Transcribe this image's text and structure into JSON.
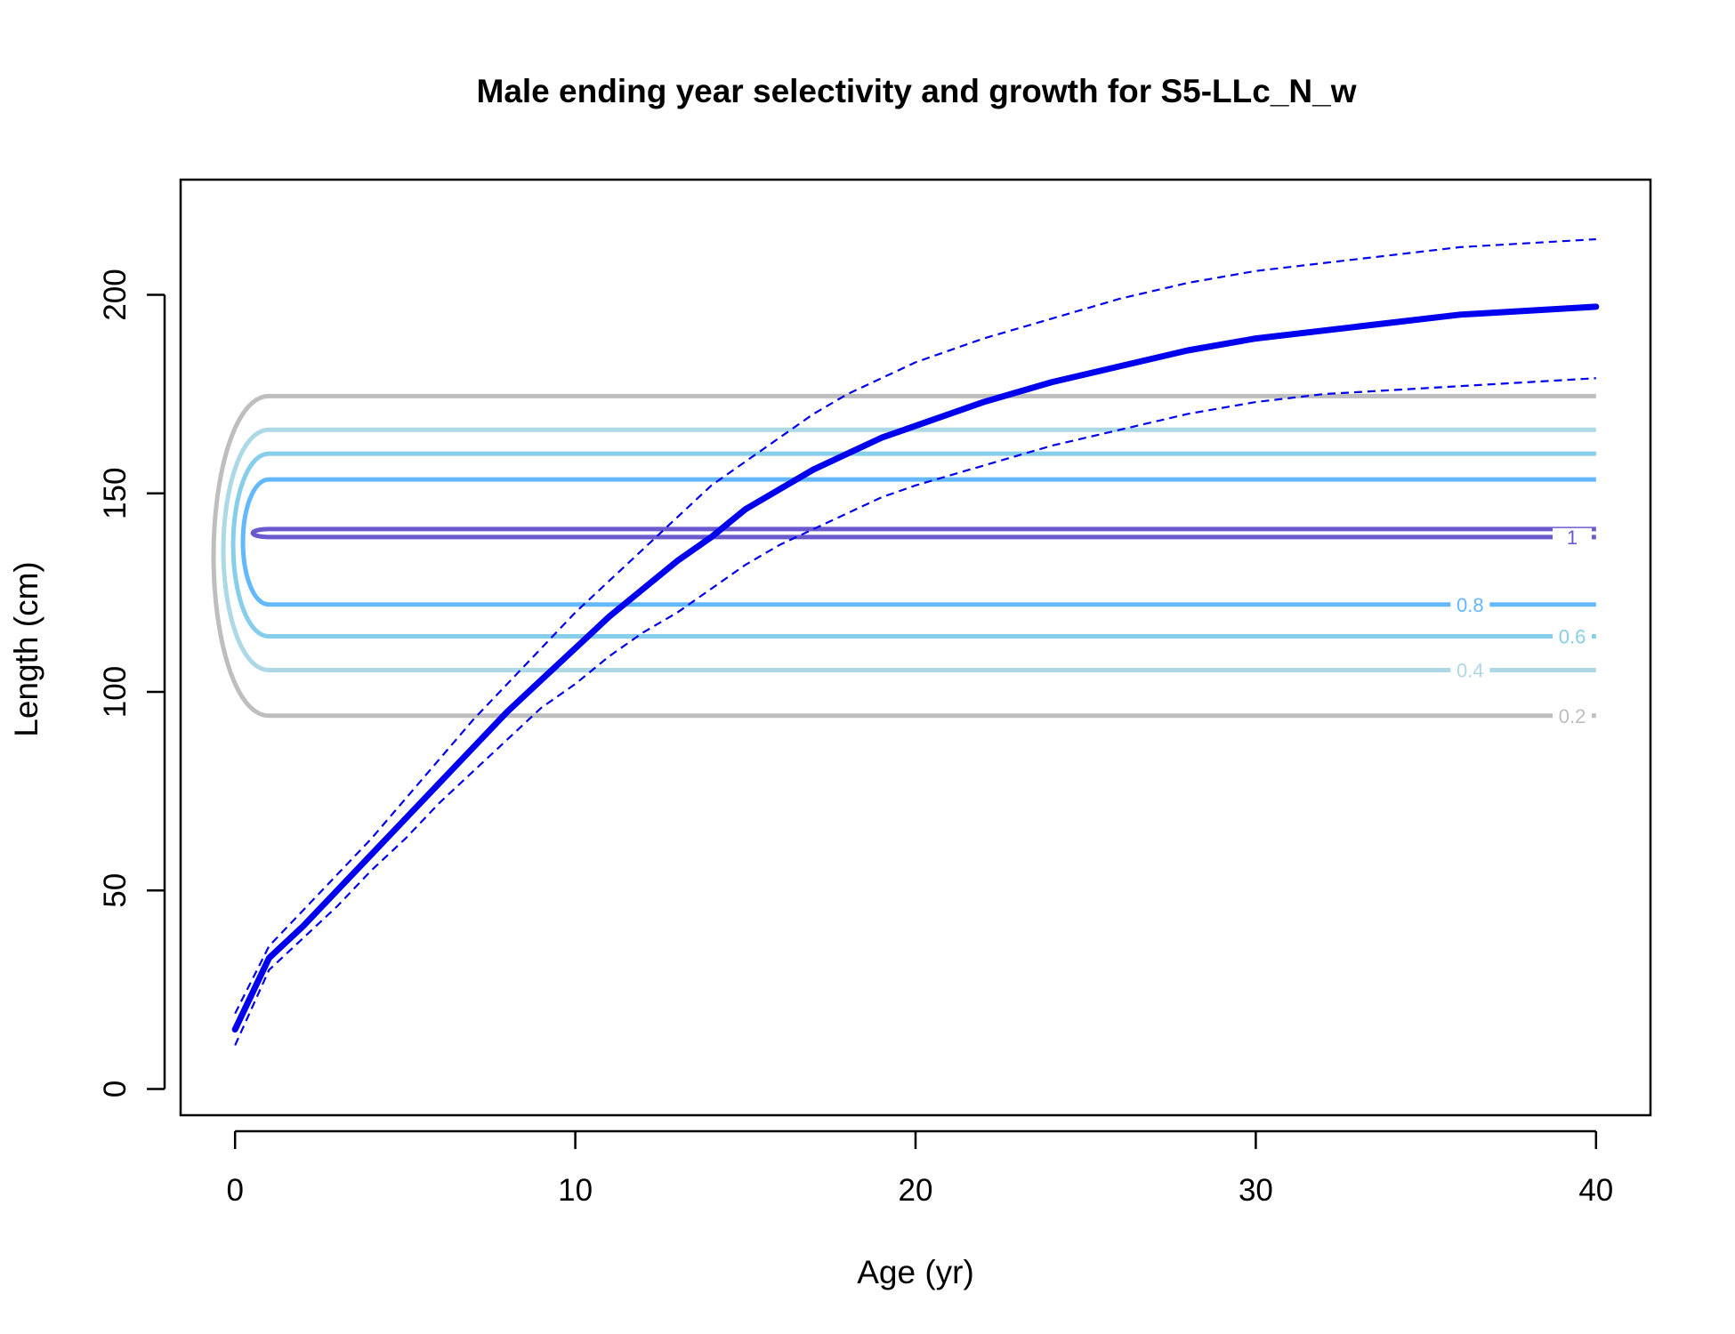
{
  "chart_data": {
    "type": "line",
    "title": "Male ending year selectivity and growth for S5-LLc_N_w",
    "xlabel": "Age (yr)",
    "ylabel": "Length (cm)",
    "xlim": [
      -1.6,
      41.6
    ],
    "ylim": [
      -6.6,
      229
    ],
    "xticks": [
      0,
      10,
      20,
      30,
      40
    ],
    "yticks": [
      0,
      50,
      100,
      150,
      200
    ],
    "grid": false,
    "legend": "none",
    "growth": {
      "color": "#0000ee",
      "mean": {
        "x": [
          0,
          1,
          2,
          3,
          4,
          5,
          6,
          7,
          8,
          9,
          10,
          11,
          12,
          13,
          14,
          15,
          16,
          17,
          18,
          19,
          20,
          22,
          24,
          26,
          28,
          30,
          32,
          34,
          36,
          38,
          40
        ],
        "y": [
          15,
          33,
          41,
          50,
          59,
          68,
          77,
          86,
          95,
          103,
          111,
          119,
          126,
          133,
          139,
          146,
          151,
          156,
          160,
          164,
          167,
          173,
          178,
          182,
          186,
          189,
          191,
          193,
          195,
          196,
          197
        ]
      },
      "upper": {
        "x": [
          0,
          1,
          2,
          3,
          4,
          5,
          6,
          7,
          8,
          9,
          10,
          11,
          12,
          13,
          14,
          15,
          16,
          17,
          18,
          19,
          20,
          22,
          24,
          26,
          28,
          30,
          32,
          34,
          36,
          38,
          40
        ],
        "y": [
          19,
          36,
          45,
          54,
          63,
          73,
          83,
          93,
          102,
          111,
          120,
          128,
          136,
          144,
          152,
          158,
          164,
          170,
          175,
          179,
          183,
          189,
          194,
          199,
          203,
          206,
          208,
          210,
          212,
          213,
          214
        ]
      },
      "lower": {
        "x": [
          0,
          1,
          2,
          3,
          4,
          5,
          6,
          7,
          8,
          9,
          10,
          11,
          12,
          13,
          14,
          15,
          16,
          17,
          18,
          19,
          20,
          22,
          24,
          26,
          28,
          30,
          32,
          34,
          36,
          38,
          40
        ],
        "y": [
          11,
          30,
          38,
          46,
          55,
          63,
          72,
          80,
          88,
          96,
          102,
          109,
          115,
          120,
          126,
          132,
          137,
          141,
          145,
          149,
          152,
          157,
          162,
          166,
          170,
          173,
          175,
          176,
          177,
          178,
          179
        ]
      }
    },
    "selectivity_contours": [
      {
        "level": 0.2,
        "label": "0.2",
        "color": "#bebebe",
        "lower": 94,
        "upper": 174.5,
        "label_age": 39.3,
        "label_side": "lower"
      },
      {
        "level": 0.4,
        "label": "0.4",
        "color": "#add8e6",
        "lower": 105.5,
        "upper": 166,
        "label_age": 36.3,
        "label_side": "lower"
      },
      {
        "level": 0.6,
        "label": "0.6",
        "color": "#87ceeb",
        "lower": 114,
        "upper": 160,
        "label_age": 39.3,
        "label_side": "lower"
      },
      {
        "level": 0.8,
        "label": "0.8",
        "color": "#63b8ff",
        "lower": 122,
        "upper": 153.5,
        "label_age": 36.3,
        "label_side": "lower"
      },
      {
        "level": 1.0,
        "label": "1",
        "color": "#6a5acd",
        "lower": 139,
        "upper": 141,
        "label_age": 39.3,
        "label_side": "lower"
      }
    ]
  }
}
